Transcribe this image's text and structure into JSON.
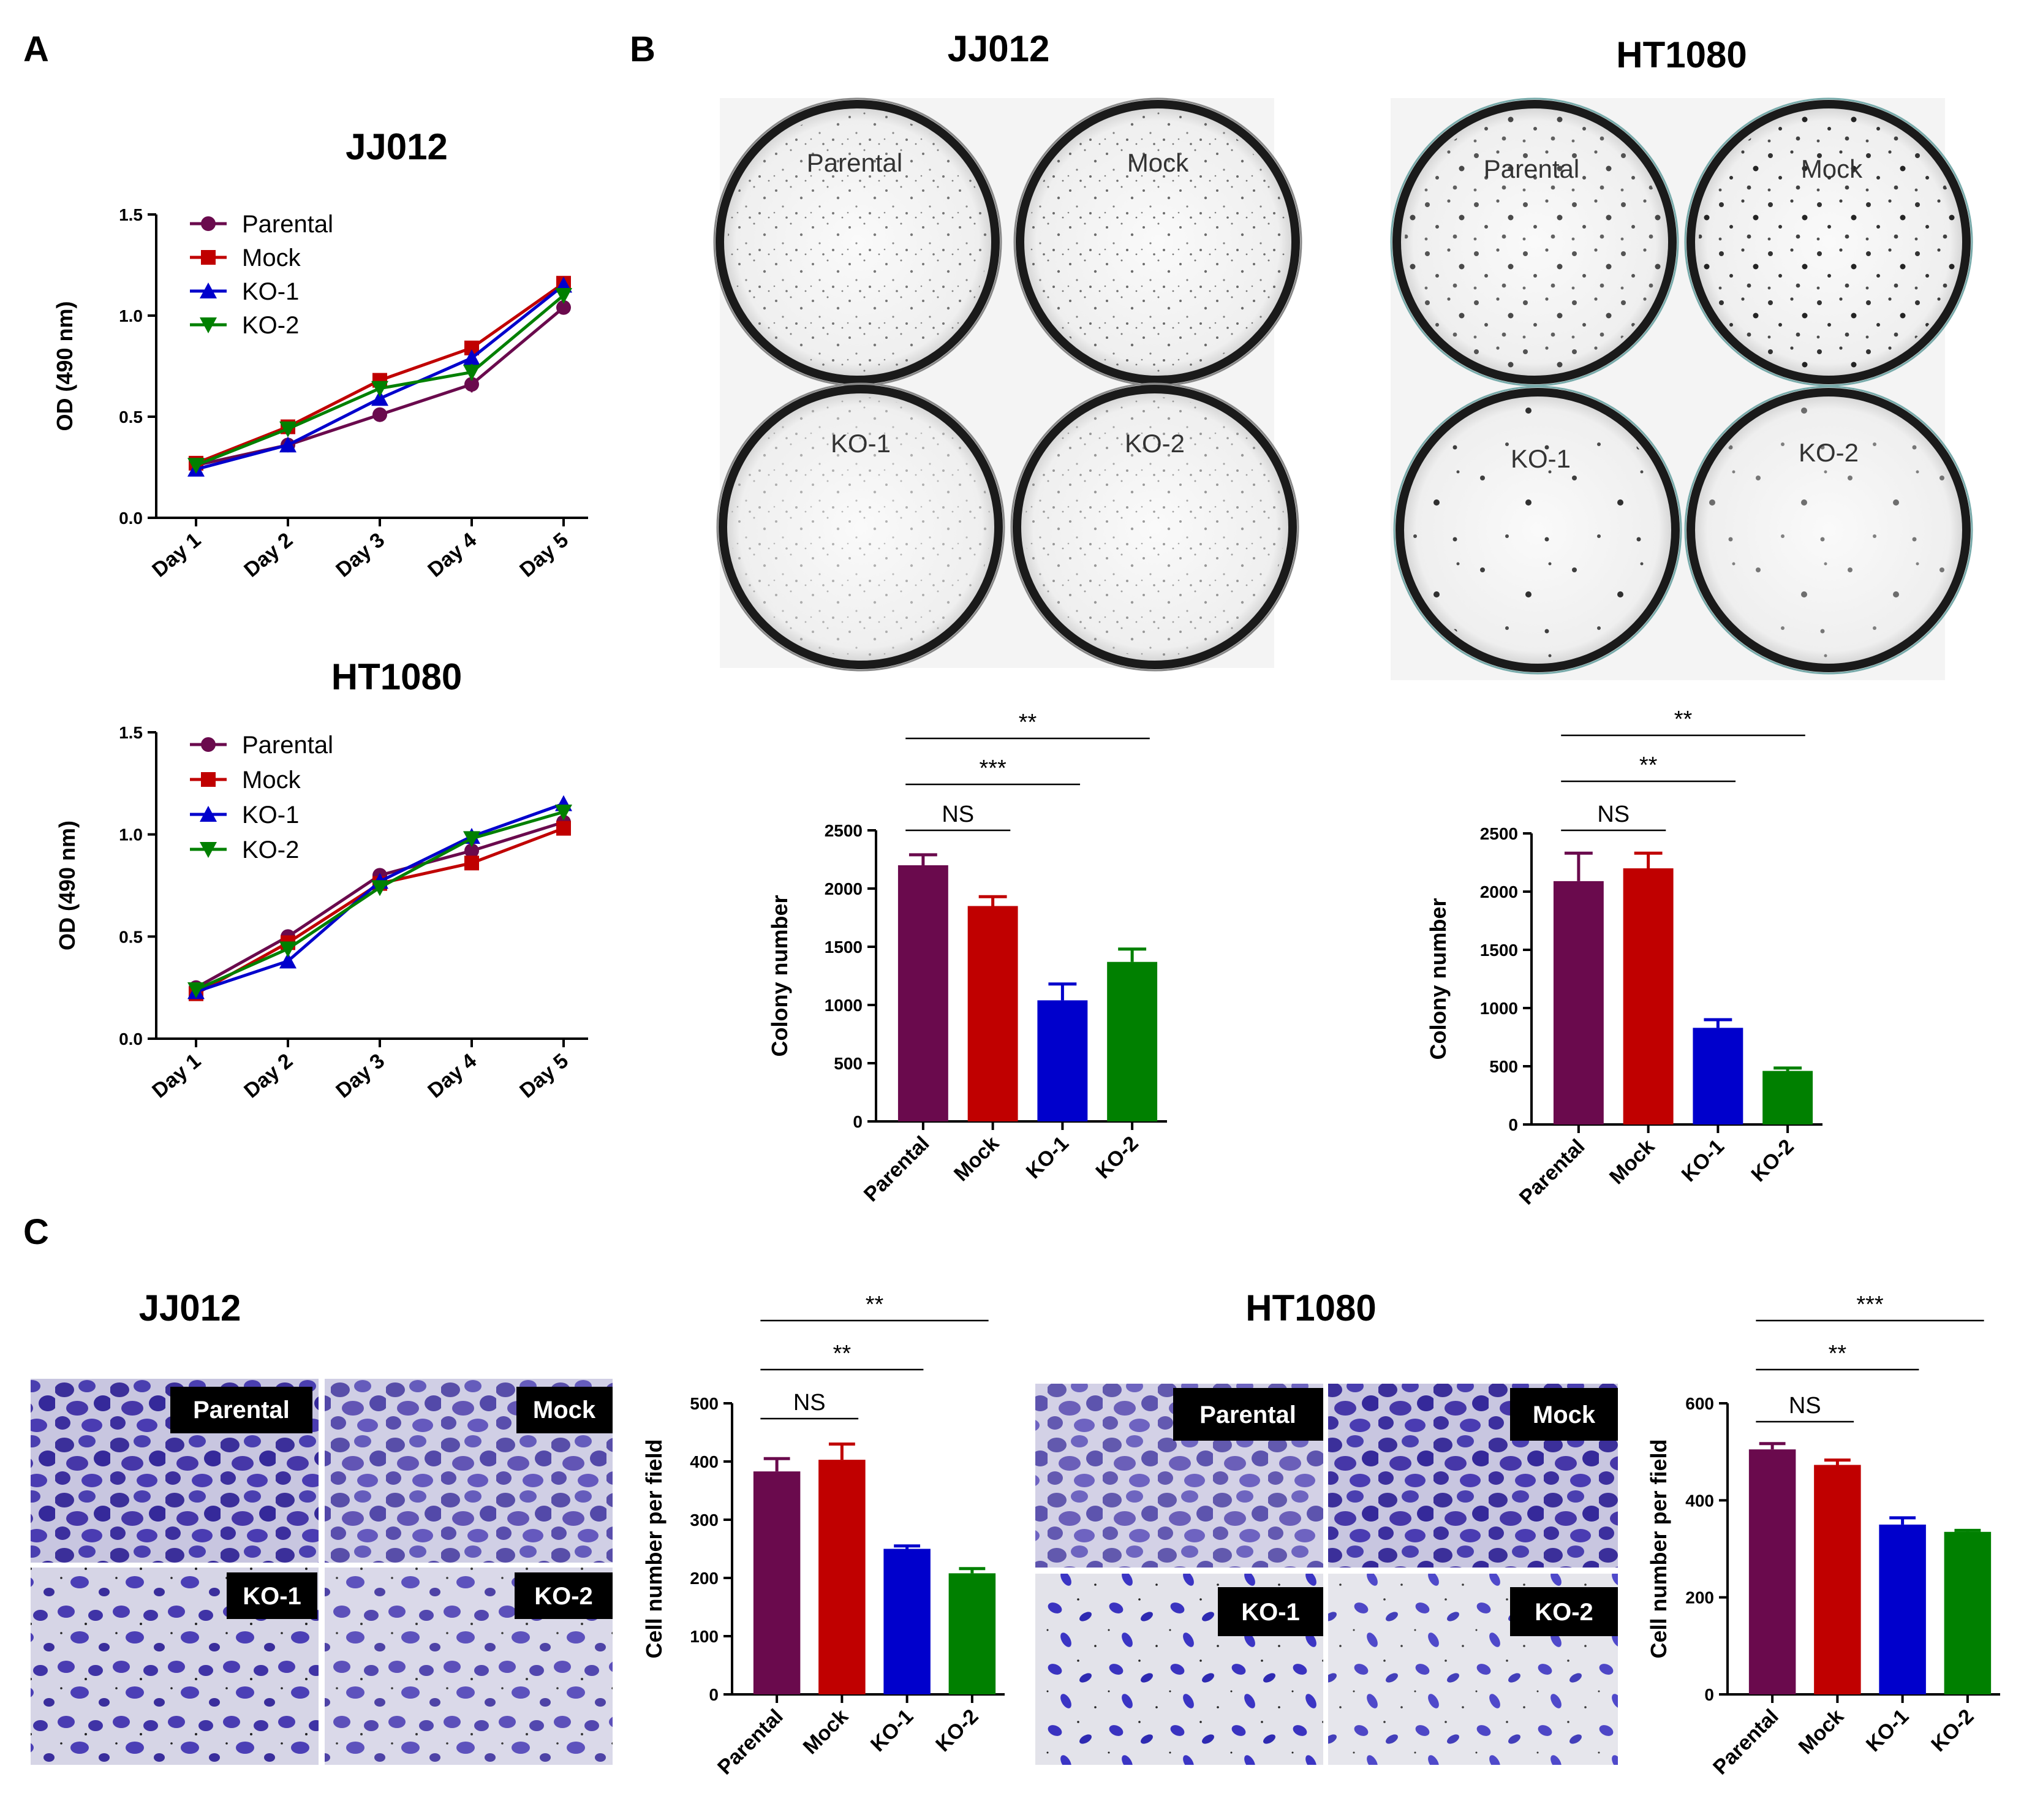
{
  "panel_letters": [
    "A",
    "B",
    "C"
  ],
  "colors": {
    "parental": "#6a0a4d",
    "mock": "#c00000",
    "ko1": "#0000cc",
    "ko2": "#008000"
  },
  "plates": {
    "jj012": {
      "title": "JJ012",
      "labels": [
        "Parental",
        "Mock",
        "KO-1",
        "KO-2"
      ]
    },
    "ht1080": {
      "title": "HT1080",
      "labels": [
        "Parental",
        "Mock",
        "KO-1",
        "KO-2"
      ]
    }
  },
  "micrographs": {
    "jj012": {
      "title": "JJ012",
      "labels": [
        "Parental",
        "Mock",
        "KO-1",
        "KO-2"
      ]
    },
    "ht1080": {
      "title": "HT1080",
      "labels": [
        "Parental",
        "Mock",
        "KO-1",
        "KO-2"
      ]
    }
  },
  "chart_data": [
    {
      "id": "a_jj012",
      "type": "line",
      "title": "JJ012",
      "xlabel": "",
      "ylabel": "OD (490 nm)",
      "x": [
        "Day 1",
        "Day 2",
        "Day 3",
        "Day 4",
        "Day 5"
      ],
      "ylim": [
        0,
        1.5
      ],
      "yticks": [
        "0.0",
        "0.5",
        "1.0",
        "1.5"
      ],
      "legend_position": "top-left",
      "series": [
        {
          "name": "Parental",
          "values": [
            0.26,
            0.36,
            0.51,
            0.66,
            1.04
          ],
          "errors": [
            0.01,
            0.01,
            0.02,
            0.04,
            0.02
          ],
          "marker": "circle",
          "color": "#6a0a4d"
        },
        {
          "name": "Mock",
          "values": [
            0.27,
            0.45,
            0.68,
            0.84,
            1.16
          ],
          "errors": [
            0.01,
            0.01,
            0.02,
            0.02,
            0.02
          ],
          "marker": "square",
          "color": "#c00000"
        },
        {
          "name": "KO-1",
          "values": [
            0.24,
            0.36,
            0.59,
            0.79,
            1.15
          ],
          "errors": [
            0.01,
            0.01,
            0.02,
            0.02,
            0.02
          ],
          "marker": "triangle-up",
          "color": "#0000cc"
        },
        {
          "name": "KO-2",
          "values": [
            0.26,
            0.44,
            0.64,
            0.72,
            1.1
          ],
          "errors": [
            0.01,
            0.01,
            0.02,
            0.04,
            0.02
          ],
          "marker": "triangle-down",
          "color": "#008000"
        }
      ]
    },
    {
      "id": "a_ht1080",
      "type": "line",
      "title": "HT1080",
      "xlabel": "",
      "ylabel": "OD (490 nm)",
      "x": [
        "Day 1",
        "Day 2",
        "Day 3",
        "Day 4",
        "Day 5"
      ],
      "ylim": [
        0,
        1.5
      ],
      "yticks": [
        "0.0",
        "0.5",
        "1.0",
        "1.5"
      ],
      "legend_position": "top-left",
      "series": [
        {
          "name": "Parental",
          "values": [
            0.25,
            0.5,
            0.8,
            0.92,
            1.06
          ],
          "errors": [
            0.01,
            0.01,
            0.02,
            0.02,
            0.02
          ],
          "marker": "circle",
          "color": "#6a0a4d"
        },
        {
          "name": "Mock",
          "values": [
            0.22,
            0.47,
            0.76,
            0.86,
            1.03
          ],
          "errors": [
            0.01,
            0.01,
            0.02,
            0.02,
            0.02
          ],
          "marker": "square",
          "color": "#c00000"
        },
        {
          "name": "KO-1",
          "values": [
            0.23,
            0.38,
            0.77,
            0.99,
            1.15
          ],
          "errors": [
            0.01,
            0.01,
            0.02,
            0.02,
            0.03
          ],
          "marker": "triangle-up",
          "color": "#0000cc"
        },
        {
          "name": "KO-2",
          "values": [
            0.24,
            0.44,
            0.74,
            0.98,
            1.11
          ],
          "errors": [
            0.01,
            0.01,
            0.02,
            0.02,
            0.02
          ],
          "marker": "triangle-down",
          "color": "#008000"
        }
      ]
    },
    {
      "id": "b_jj012",
      "type": "bar",
      "title": "",
      "ylabel": "Colony number",
      "categories": [
        "Parental",
        "Mock",
        "KO-1",
        "KO-2"
      ],
      "values": [
        2200,
        1850,
        1040,
        1370
      ],
      "errors": [
        90,
        80,
        140,
        110
      ],
      "ylim": [
        0,
        2500
      ],
      "yticks": [
        "0",
        "500",
        "1000",
        "1500",
        "2000",
        "2500"
      ],
      "colors": [
        "#6a0a4d",
        "#c00000",
        "#0000cc",
        "#008000"
      ],
      "significance": [
        {
          "from": 0,
          "to": 1,
          "label": "NS"
        },
        {
          "from": 0,
          "to": 2,
          "label": "***"
        },
        {
          "from": 0,
          "to": 3,
          "label": "**"
        }
      ]
    },
    {
      "id": "b_ht1080",
      "type": "bar",
      "title": "",
      "ylabel": "Colony number",
      "categories": [
        "Parental",
        "Mock",
        "KO-1",
        "KO-2"
      ],
      "values": [
        2090,
        2200,
        830,
        460
      ],
      "errors": [
        240,
        130,
        70,
        25
      ],
      "ylim": [
        0,
        2500
      ],
      "yticks": [
        "0",
        "500",
        "1000",
        "1500",
        "2000",
        "2500"
      ],
      "colors": [
        "#6a0a4d",
        "#c00000",
        "#0000cc",
        "#008000"
      ],
      "significance": [
        {
          "from": 0,
          "to": 1,
          "label": "NS"
        },
        {
          "from": 0,
          "to": 2,
          "label": "**"
        },
        {
          "from": 0,
          "to": 3,
          "label": "**"
        }
      ]
    },
    {
      "id": "c_jj012",
      "type": "bar",
      "title": "",
      "ylabel": "Cell number per field",
      "categories": [
        "Parental",
        "Mock",
        "KO-1",
        "KO-2"
      ],
      "values": [
        383,
        403,
        250,
        208
      ],
      "errors": [
        22,
        27,
        5,
        8
      ],
      "ylim": [
        0,
        500
      ],
      "yticks": [
        "0",
        "100",
        "200",
        "300",
        "400",
        "500"
      ],
      "colors": [
        "#6a0a4d",
        "#c00000",
        "#0000cc",
        "#008000"
      ],
      "significance": [
        {
          "from": 0,
          "to": 1,
          "label": "NS"
        },
        {
          "from": 0,
          "to": 2,
          "label": "**"
        },
        {
          "from": 0,
          "to": 3,
          "label": "**"
        }
      ]
    },
    {
      "id": "c_ht1080",
      "type": "bar",
      "title": "",
      "ylabel": "Cell number per field",
      "categories": [
        "Parental",
        "Mock",
        "KO-1",
        "KO-2"
      ],
      "values": [
        505,
        473,
        350,
        335
      ],
      "errors": [
        12,
        10,
        14,
        3
      ],
      "ylim": [
        0,
        600
      ],
      "yticks": [
        "0",
        "200",
        "400",
        "600"
      ],
      "colors": [
        "#6a0a4d",
        "#c00000",
        "#0000cc",
        "#008000"
      ],
      "significance": [
        {
          "from": 0,
          "to": 1,
          "label": "NS"
        },
        {
          "from": 0,
          "to": 2,
          "label": "**"
        },
        {
          "from": 0,
          "to": 3,
          "label": "***"
        }
      ]
    }
  ]
}
